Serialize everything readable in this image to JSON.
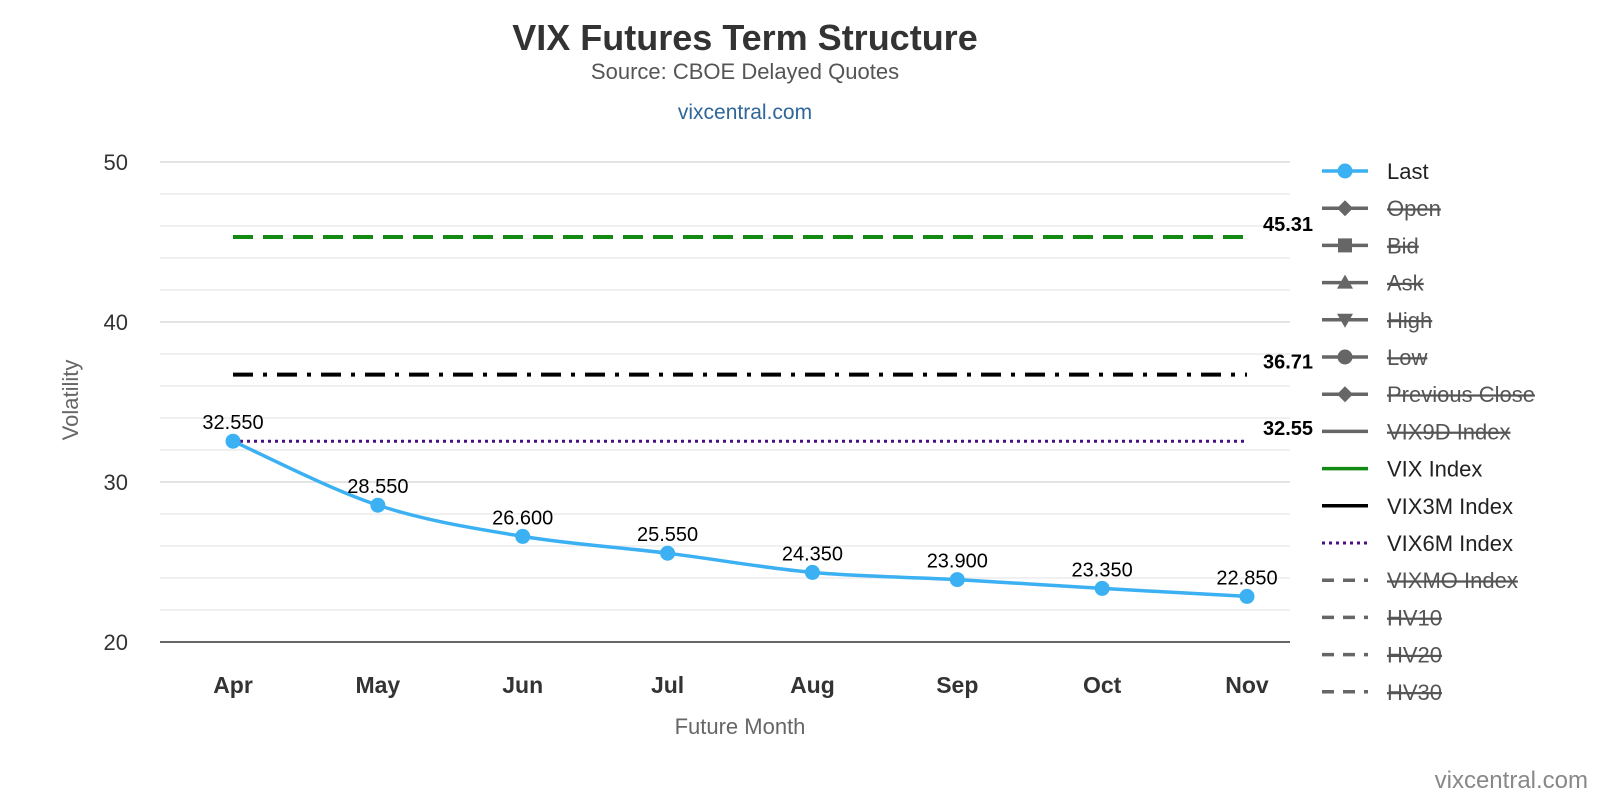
{
  "chart_data": {
    "type": "line",
    "title": "VIX Futures Term Structure",
    "subtitle": "Source: CBOE Delayed Quotes",
    "link_text": "vixcentral.com",
    "credits": "vixcentral.com",
    "xlabel": "Future Month",
    "ylabel": "Volatility",
    "ylim": [
      20,
      50
    ],
    "y_ticks": [
      20,
      30,
      40,
      50
    ],
    "grid": true,
    "legend_position": "right",
    "categories": [
      "Apr",
      "May",
      "Jun",
      "Jul",
      "Aug",
      "Sep",
      "Oct",
      "Nov"
    ],
    "series": [
      {
        "name": "Last",
        "values": [
          32.55,
          28.55,
          26.6,
          25.55,
          24.35,
          23.9,
          23.35,
          22.85
        ],
        "data_labels": [
          "32.550",
          "28.550",
          "26.600",
          "25.550",
          "24.350",
          "23.900",
          "23.350",
          "22.850"
        ],
        "color": "#3bb0f2"
      }
    ],
    "reference_lines": [
      {
        "name": "VIX Index",
        "value": 45.31,
        "label": "45.31",
        "color": "#138a13",
        "style": "dashed"
      },
      {
        "name": "VIX3M Index",
        "value": 36.71,
        "label": "36.71",
        "color": "#000000",
        "style": "dash-dot"
      },
      {
        "name": "VIX6M Index",
        "value": 32.55,
        "label": "32.55",
        "color": "#4b0f85",
        "style": "dotted"
      }
    ],
    "legend": [
      {
        "label": "Last",
        "symbol": "circle",
        "line": "solid",
        "color": "#3bb0f2",
        "visible": true
      },
      {
        "label": "Open",
        "symbol": "diamond",
        "line": "solid",
        "color": "#666666",
        "visible": false
      },
      {
        "label": "Bid",
        "symbol": "square",
        "line": "solid",
        "color": "#666666",
        "visible": false
      },
      {
        "label": "Ask",
        "symbol": "triangle",
        "line": "solid",
        "color": "#666666",
        "visible": false
      },
      {
        "label": "High",
        "symbol": "triangle-down",
        "line": "solid",
        "color": "#666666",
        "visible": false
      },
      {
        "label": "Low",
        "symbol": "circle",
        "line": "solid",
        "color": "#666666",
        "visible": false
      },
      {
        "label": "Previous Close",
        "symbol": "diamond",
        "line": "solid",
        "color": "#666666",
        "visible": false
      },
      {
        "label": "VIX9D Index",
        "symbol": "none",
        "line": "solid",
        "color": "#666666",
        "visible": false
      },
      {
        "label": "VIX Index",
        "symbol": "none",
        "line": "solid",
        "color": "#138a13",
        "visible": true
      },
      {
        "label": "VIX3M Index",
        "symbol": "none",
        "line": "solid",
        "color": "#000000",
        "visible": true
      },
      {
        "label": "VIX6M Index",
        "symbol": "none",
        "line": "dotted",
        "color": "#4b0f85",
        "visible": true
      },
      {
        "label": "VIXMO Index",
        "symbol": "none",
        "line": "dashed",
        "color": "#666666",
        "visible": false
      },
      {
        "label": "HV10",
        "symbol": "none",
        "line": "dashed",
        "color": "#666666",
        "visible": false
      },
      {
        "label": "HV20",
        "symbol": "none",
        "line": "dashed",
        "color": "#666666",
        "visible": false
      },
      {
        "label": "HV30",
        "symbol": "none",
        "line": "dashed",
        "color": "#666666",
        "visible": false
      }
    ]
  }
}
